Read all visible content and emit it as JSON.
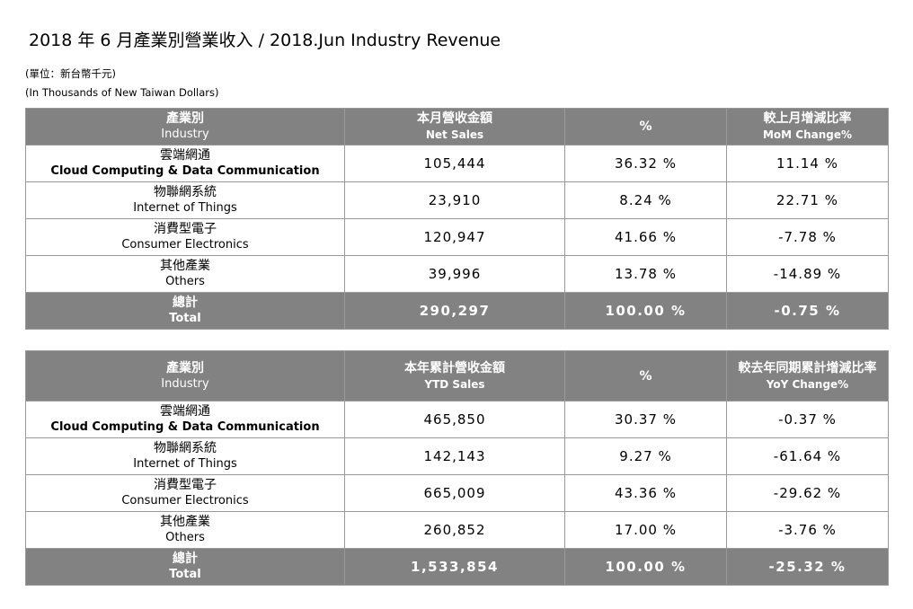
{
  "title": "2018 年 6 月產業別營業收入 / 2018.Jun Industry Revenue",
  "notes": [
    "(單位：新台幣千元)",
    "(In Thousands of New Taiwan Dollars)"
  ],
  "tables": [
    {
      "header": [
        [
          "產業別",
          "Industry"
        ],
        [
          "本月營收金額",
          "Net Sales"
        ],
        [
          "%"
        ],
        [
          "較上月增減比率",
          "MoM Change%"
        ]
      ],
      "rows": [
        {
          "label": [
            "雲端網通",
            "Cloud Computing & Data Communication"
          ],
          "cells": [
            "105,444",
            "36.32 %",
            "11.14 %"
          ]
        },
        {
          "label": [
            "物聯網系統",
            "Internet of Things"
          ],
          "cells": [
            "23,910",
            "8.24 %",
            "22.71 %"
          ]
        },
        {
          "label": [
            "消費型電子",
            "Consumer Electronics"
          ],
          "cells": [
            "120,947",
            "41.66 %",
            "-7.78 %"
          ]
        },
        {
          "label": [
            "其他產業",
            "Others"
          ],
          "cells": [
            "39,996",
            "13.78 %",
            "-14.89 %"
          ]
        }
      ],
      "total": {
        "label": [
          "總計",
          "Total"
        ],
        "cells": [
          "290,297",
          "100.00 %",
          "-0.75 %"
        ]
      }
    },
    {
      "header": [
        [
          "產業別",
          "Industry"
        ],
        [
          "本年累計營收金額",
          "YTD Sales"
        ],
        [
          "%"
        ],
        [
          "較去年同期累計增減比率",
          "YoY Change%"
        ]
      ],
      "rows": [
        {
          "label": [
            "雲端網通",
            "Cloud Computing & Data Communication"
          ],
          "cells": [
            "465,850",
            "30.37 %",
            "-0.37 %"
          ]
        },
        {
          "label": [
            "物聯網系統",
            "Internet of Things"
          ],
          "cells": [
            "142,143",
            "9.27 %",
            "-61.64 %"
          ]
        },
        {
          "label": [
            "消費型電子",
            "Consumer Electronics"
          ],
          "cells": [
            "665,009",
            "43.36 %",
            "-29.62 %"
          ]
        },
        {
          "label": [
            "其他產業",
            "Others"
          ],
          "cells": [
            "260,852",
            "17.00 %",
            "-3.76 %"
          ]
        }
      ],
      "total": {
        "label": [
          "總計",
          "Total"
        ],
        "cells": [
          "1,533,854",
          "100.00 %",
          "-25.32 %"
        ]
      }
    }
  ]
}
